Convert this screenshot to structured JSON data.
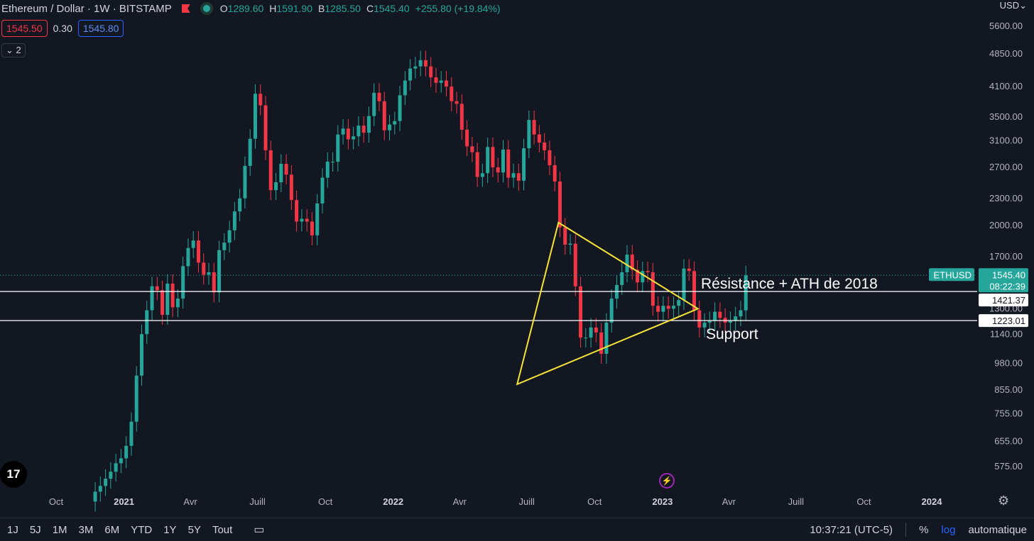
{
  "header": {
    "symbol": "Ethereum / Dollar · 1W · BITSTAMP",
    "open_label": "O",
    "open": "1289.60",
    "high_label": "H",
    "high": "1591.90",
    "low_label": "B",
    "low": "1285.50",
    "close_label": "C",
    "close": "1545.40",
    "change": "+255.80 (+19.84%)",
    "bid": "1545.50",
    "spread": "0.30",
    "ask": "1545.80",
    "indicators_toggle": "2",
    "currency": "USD"
  },
  "colors": {
    "up": "#26a69a",
    "down": "#f23645",
    "bg": "#131722",
    "triangle": "#f5e23a",
    "hline": "#ffffff"
  },
  "annotations": {
    "resistance": "Résistance + ATH de 2018",
    "support": "Support"
  },
  "price_labels": {
    "ticker": "ETHUSD",
    "last": "1545.40",
    "countdown": "08:22:39",
    "resistance": "1421.37",
    "support": "1223.01"
  },
  "chart_data": {
    "type": "candlestick",
    "scale": "log",
    "y_ticks": [
      "5600.00",
      "4850.00",
      "4100.00",
      "3500.00",
      "3100.00",
      "2700.00",
      "2300.00",
      "2000.00",
      "1700.00",
      "1300.00",
      "1140.00",
      "980.00",
      "855.00",
      "755.00",
      "655.00",
      "575.00"
    ],
    "x_ticks": [
      "Oct",
      "2021",
      "Avr",
      "Juill",
      "Oct",
      "2022",
      "Avr",
      "Juill",
      "Oct",
      "2023",
      "Avr",
      "Juill",
      "Oct",
      "2024"
    ],
    "levels": {
      "resistance": 1421.37,
      "support": 1223.01,
      "last": 1545.4
    },
    "triangle": [
      [
        "2022-06-18",
        880
      ],
      [
        "2022-08-13",
        2030
      ],
      [
        "2023-02-18",
        1300
      ]
    ],
    "closes": [
      505,
      520,
      540,
      560,
      585,
      600,
      640,
      725,
      920,
      1140,
      1290,
      1460,
      1430,
      1260,
      1480,
      1310,
      1370,
      1620,
      1780,
      1850,
      1650,
      1550,
      1570,
      1415,
      1760,
      1830,
      1950,
      2150,
      2300,
      2720,
      3130,
      3950,
      3720,
      2950,
      2400,
      2500,
      2750,
      2600,
      2280,
      2040,
      2070,
      2040,
      1900,
      2240,
      2560,
      2780,
      2780,
      3200,
      3300,
      3120,
      3170,
      3350,
      3230,
      3520,
      3970,
      3800,
      3270,
      3370,
      3430,
      3920,
      4230,
      4500,
      4550,
      4700,
      4550,
      4300,
      4180,
      4230,
      4100,
      3800,
      3750,
      3280,
      3010,
      2920,
      2570,
      2620,
      3000,
      2700,
      2630,
      2960,
      2560,
      2620,
      2520,
      2980,
      3450,
      3200,
      3070,
      2950,
      2730,
      2510,
      1980,
      1810,
      1820,
      1460,
      1120,
      1120,
      1180,
      1150,
      1030,
      1210,
      1370,
      1470,
      1570,
      1720,
      1590,
      1490,
      1580,
      1570,
      1320,
      1280,
      1320,
      1300,
      1320,
      1360,
      1600,
      1580,
      1290,
      1180,
      1210,
      1220,
      1280,
      1240,
      1210,
      1220,
      1250,
      1289.6,
      1545.4
    ]
  },
  "timeframes": [
    "1J",
    "5J",
    "1M",
    "3M",
    "6M",
    "YTD",
    "1Y",
    "5Y",
    "Tout"
  ],
  "status": {
    "clock": "10:37:21 (UTC-5)",
    "percent": "%",
    "log": "log",
    "auto": "automatique"
  },
  "icons": {
    "logo": "tradingview-logo-icon",
    "bolt": "lightning-icon",
    "settings": "gear-icon",
    "calendar": "calendar-range-icon"
  }
}
